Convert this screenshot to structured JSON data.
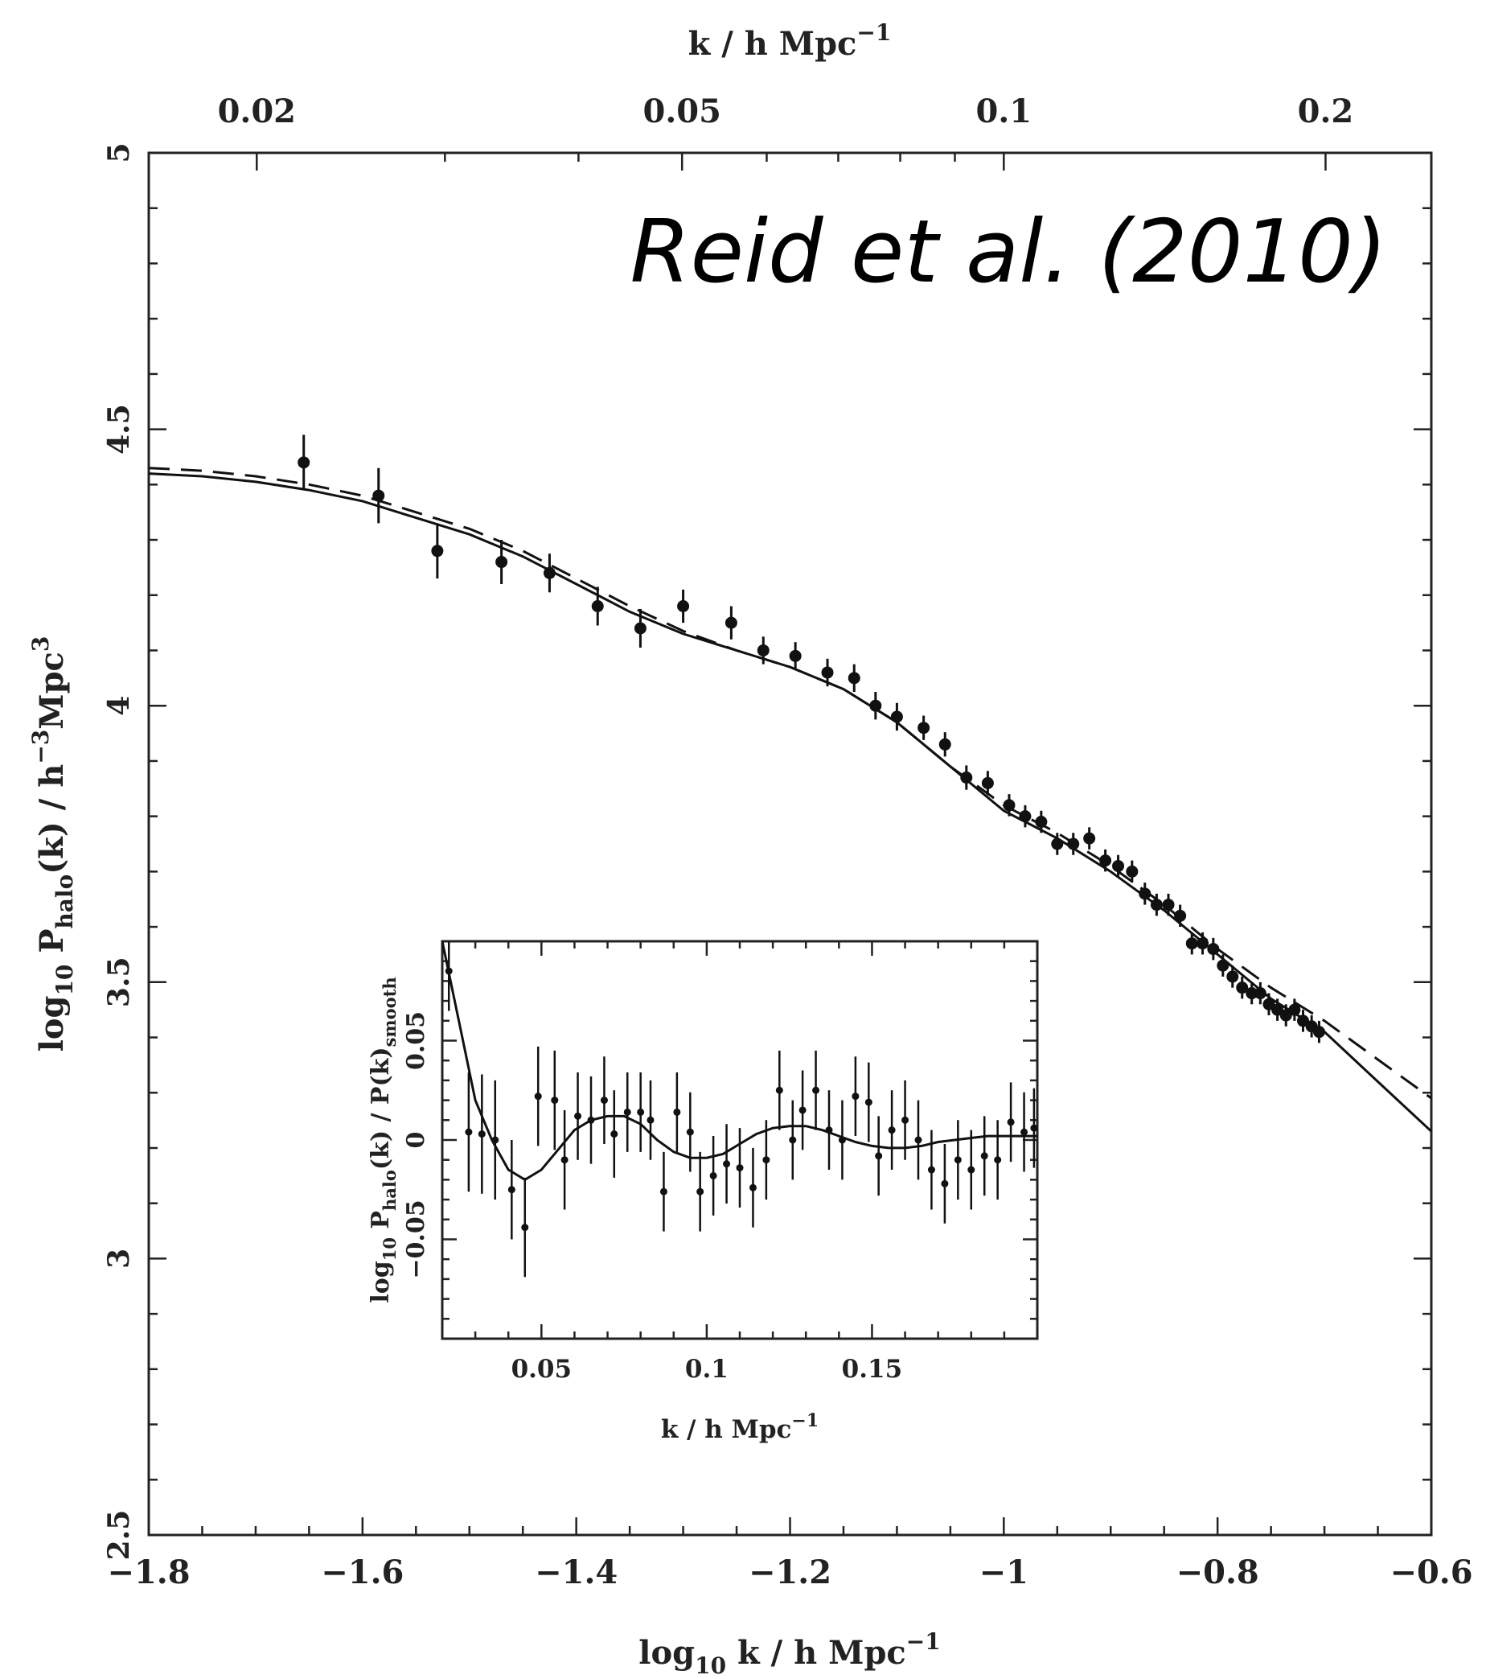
{
  "credit_text": "Reid et al. (2010)",
  "chart_data": [
    {
      "type": "scatter",
      "title": "",
      "xlabel": "log10 k / h Mpc^-1",
      "xlabel_parts": {
        "pre": "log",
        "sub": "10",
        "mid": " k / h Mpc",
        "sup": "−1"
      },
      "top_xlabel_parts": {
        "pre": "k / h Mpc",
        "sup": "−1"
      },
      "ylabel_parts": {
        "pre": "log",
        "sub1": "10",
        "mid1": " P",
        "sub2": "halo",
        "mid2": "(k) / h",
        "sup1": "−3",
        "mid3": "Mpc",
        "sup2": "3"
      },
      "xlim": [
        -1.8,
        -0.6
      ],
      "ylim": [
        2.5,
        5
      ],
      "x_ticks": [
        -1.8,
        -1.6,
        -1.4,
        -1.2,
        -1,
        -0.8,
        -0.6
      ],
      "x_tick_labels": [
        "−1.8",
        "−1.6",
        "−1.4",
        "−1.2",
        "−1",
        "−0.8",
        "−0.6"
      ],
      "y_ticks": [
        2.5,
        3,
        3.5,
        4,
        4.5,
        5
      ],
      "y_tick_labels": [
        "2.5",
        "3",
        "3.5",
        "4",
        "4.5",
        "5"
      ],
      "top_x_ticks_k": [
        0.02,
        0.05,
        0.1,
        0.2
      ],
      "top_x_tick_labels": [
        "0.02",
        "0.05",
        "0.1",
        "0.2"
      ],
      "grid": false,
      "series": [
        {
          "kind": "errorbar",
          "points": [
            [
              -1.655,
              4.44,
              0.05
            ],
            [
              -1.585,
              4.38,
              0.05
            ],
            [
              -1.53,
              4.28,
              0.05
            ],
            [
              -1.47,
              4.26,
              0.04
            ],
            [
              -1.425,
              4.24,
              0.035
            ],
            [
              -1.38,
              4.18,
              0.035
            ],
            [
              -1.34,
              4.14,
              0.035
            ],
            [
              -1.3,
              4.18,
              0.03
            ],
            [
              -1.255,
              4.15,
              0.03
            ],
            [
              -1.225,
              4.1,
              0.025
            ],
            [
              -1.195,
              4.09,
              0.025
            ],
            [
              -1.165,
              4.06,
              0.025
            ],
            [
              -1.14,
              4.05,
              0.025
            ],
            [
              -1.12,
              4.0,
              0.025
            ],
            [
              -1.1,
              3.98,
              0.025
            ],
            [
              -1.075,
              3.96,
              0.022
            ],
            [
              -1.055,
              3.93,
              0.022
            ],
            [
              -1.035,
              3.87,
              0.022
            ],
            [
              -1.015,
              3.86,
              0.022
            ],
            [
              -0.995,
              3.82,
              0.02
            ],
            [
              -0.98,
              3.8,
              0.02
            ],
            [
              -0.965,
              3.79,
              0.02
            ],
            [
              -0.95,
              3.75,
              0.02
            ],
            [
              -0.935,
              3.75,
              0.02
            ],
            [
              -0.92,
              3.76,
              0.02
            ],
            [
              -0.905,
              3.72,
              0.02
            ],
            [
              -0.893,
              3.71,
              0.02
            ],
            [
              -0.88,
              3.7,
              0.02
            ],
            [
              -0.868,
              3.66,
              0.02
            ],
            [
              -0.857,
              3.64,
              0.02
            ],
            [
              -0.846,
              3.64,
              0.02
            ],
            [
              -0.835,
              3.62,
              0.02
            ],
            [
              -0.824,
              3.57,
              0.02
            ],
            [
              -0.814,
              3.57,
              0.02
            ],
            [
              -0.804,
              3.56,
              0.02
            ],
            [
              -0.795,
              3.53,
              0.02
            ],
            [
              -0.786,
              3.51,
              0.02
            ],
            [
              -0.777,
              3.49,
              0.02
            ],
            [
              -0.768,
              3.48,
              0.02
            ],
            [
              -0.76,
              3.48,
              0.02
            ],
            [
              -0.752,
              3.46,
              0.02
            ],
            [
              -0.744,
              3.45,
              0.02
            ],
            [
              -0.736,
              3.44,
              0.02
            ],
            [
              -0.728,
              3.45,
              0.02
            ],
            [
              -0.72,
              3.43,
              0.02
            ],
            [
              -0.712,
              3.42,
              0.02
            ],
            [
              -0.705,
              3.41,
              0.02
            ]
          ]
        },
        {
          "kind": "line",
          "style": "solid",
          "x": [
            -1.8,
            -1.75,
            -1.7,
            -1.65,
            -1.6,
            -1.55,
            -1.5,
            -1.45,
            -1.4,
            -1.35,
            -1.3,
            -1.25,
            -1.2,
            -1.15,
            -1.1,
            -1.05,
            -1.0,
            -0.95,
            -0.9,
            -0.85,
            -0.8,
            -0.75,
            -0.7,
            -0.65,
            -0.6
          ],
          "y": [
            4.42,
            4.415,
            4.405,
            4.39,
            4.37,
            4.34,
            4.31,
            4.27,
            4.22,
            4.17,
            4.13,
            4.1,
            4.07,
            4.03,
            3.97,
            3.89,
            3.81,
            3.76,
            3.7,
            3.63,
            3.55,
            3.47,
            3.41,
            3.32,
            3.23
          ]
        },
        {
          "kind": "line",
          "style": "dashed",
          "x": [
            -1.8,
            -1.75,
            -1.7,
            -1.65,
            -1.6,
            -1.55,
            -1.5,
            -1.45,
            -1.4,
            -1.35,
            -1.3,
            -1.25,
            -1.2,
            -1.15,
            -1.1,
            -1.05,
            -1.0,
            -0.95,
            -0.9,
            -0.85,
            -0.8,
            -0.75,
            -0.7,
            -0.65,
            -0.6
          ],
          "y": [
            4.43,
            4.425,
            4.415,
            4.4,
            4.38,
            4.35,
            4.32,
            4.28,
            4.23,
            4.18,
            4.135,
            4.1,
            4.07,
            4.03,
            3.97,
            3.89,
            3.82,
            3.77,
            3.71,
            3.64,
            3.56,
            3.49,
            3.43,
            3.36,
            3.29
          ]
        }
      ]
    },
    {
      "type": "scatter",
      "title": "",
      "xlabel_parts": {
        "pre": "k / h Mpc",
        "sup": "−1"
      },
      "ylabel_parts": {
        "pre": "log",
        "sub1": "10",
        "mid1": " P",
        "sub2": "halo",
        "mid2": "(k) / P(k)",
        "sub3": "smooth"
      },
      "xlim": [
        0.02,
        0.2
      ],
      "ylim": [
        -0.1,
        0.1
      ],
      "x_ticks": [
        0.05,
        0.1,
        0.15
      ],
      "x_tick_labels": [
        "0.05",
        "0.1",
        "0.15"
      ],
      "y_ticks": [
        -0.05,
        0,
        0.05
      ],
      "y_tick_labels": [
        "−0.05",
        "0",
        "0.05"
      ],
      "grid": false,
      "series": [
        {
          "kind": "errorbar",
          "points": [
            [
              0.022,
              0.085,
              0.02
            ],
            [
              0.028,
              0.004,
              0.03
            ],
            [
              0.032,
              0.003,
              0.03
            ],
            [
              0.036,
              0.0,
              0.03
            ],
            [
              0.041,
              -0.025,
              0.025
            ],
            [
              0.045,
              -0.044,
              0.025
            ],
            [
              0.049,
              0.022,
              0.025
            ],
            [
              0.054,
              0.02,
              0.025
            ],
            [
              0.057,
              -0.01,
              0.025
            ],
            [
              0.061,
              0.012,
              0.022
            ],
            [
              0.065,
              0.01,
              0.022
            ],
            [
              0.069,
              0.02,
              0.022
            ],
            [
              0.072,
              0.003,
              0.022
            ],
            [
              0.076,
              0.014,
              0.02
            ],
            [
              0.08,
              0.014,
              0.02
            ],
            [
              0.083,
              0.01,
              0.02
            ],
            [
              0.087,
              -0.026,
              0.02
            ],
            [
              0.091,
              0.014,
              0.02
            ],
            [
              0.095,
              0.004,
              0.02
            ],
            [
              0.098,
              -0.026,
              0.02
            ],
            [
              0.102,
              -0.018,
              0.02
            ],
            [
              0.106,
              -0.012,
              0.02
            ],
            [
              0.11,
              -0.014,
              0.02
            ],
            [
              0.114,
              -0.024,
              0.02
            ],
            [
              0.118,
              -0.01,
              0.02
            ],
            [
              0.122,
              0.025,
              0.02
            ],
            [
              0.126,
              0.0,
              0.02
            ],
            [
              0.129,
              0.015,
              0.02
            ],
            [
              0.133,
              0.025,
              0.02
            ],
            [
              0.137,
              0.005,
              0.02
            ],
            [
              0.141,
              0.0,
              0.02
            ],
            [
              0.145,
              0.022,
              0.02
            ],
            [
              0.149,
              0.019,
              0.02
            ],
            [
              0.152,
              -0.008,
              0.02
            ],
            [
              0.156,
              0.005,
              0.02
            ],
            [
              0.16,
              0.01,
              0.02
            ],
            [
              0.164,
              0.0,
              0.02
            ],
            [
              0.168,
              -0.015,
              0.02
            ],
            [
              0.172,
              -0.022,
              0.02
            ],
            [
              0.176,
              -0.01,
              0.02
            ],
            [
              0.18,
              -0.015,
              0.02
            ],
            [
              0.184,
              -0.008,
              0.02
            ],
            [
              0.188,
              -0.01,
              0.02
            ],
            [
              0.192,
              0.009,
              0.02
            ],
            [
              0.196,
              0.004,
              0.02
            ],
            [
              0.199,
              0.006,
              0.02
            ]
          ]
        },
        {
          "kind": "line",
          "style": "solid",
          "x": [
            0.02,
            0.025,
            0.03,
            0.035,
            0.04,
            0.045,
            0.05,
            0.055,
            0.06,
            0.065,
            0.07,
            0.075,
            0.08,
            0.085,
            0.09,
            0.095,
            0.1,
            0.105,
            0.11,
            0.115,
            0.12,
            0.125,
            0.13,
            0.135,
            0.14,
            0.145,
            0.15,
            0.155,
            0.16,
            0.165,
            0.17,
            0.175,
            0.18,
            0.185,
            0.19,
            0.195,
            0.2
          ],
          "y": [
            0.1,
            0.06,
            0.02,
            0.0,
            -0.015,
            -0.02,
            -0.015,
            -0.005,
            0.005,
            0.01,
            0.012,
            0.012,
            0.008,
            0.0,
            -0.006,
            -0.009,
            -0.009,
            -0.007,
            -0.002,
            0.003,
            0.006,
            0.007,
            0.007,
            0.005,
            0.002,
            -0.001,
            -0.003,
            -0.004,
            -0.004,
            -0.003,
            -0.001,
            0.0,
            0.001,
            0.002,
            0.002,
            0.002,
            0.002
          ]
        }
      ]
    }
  ]
}
